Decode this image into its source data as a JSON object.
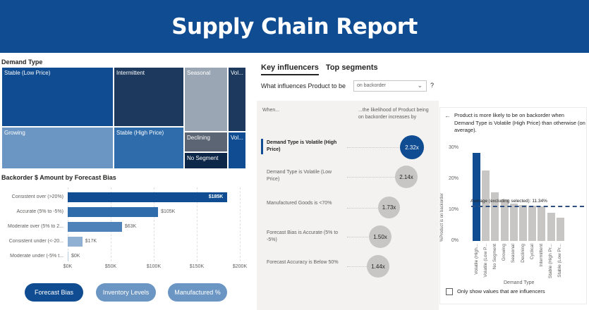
{
  "banner": {
    "title": "Supply Chain Report"
  },
  "treemap": {
    "title": "Demand Type",
    "tiles": [
      {
        "label": "Stable (Low Price)",
        "color": "#0f4c91"
      },
      {
        "label": "Growing",
        "color": "#6b95c2"
      },
      {
        "label": "Intermittent",
        "color": "#1d3a5e"
      },
      {
        "label": "Stable (High Price)",
        "color": "#2f6cab"
      },
      {
        "label": "Seasonal",
        "color": "#9ba6b4"
      },
      {
        "label": "Declining",
        "color": "#5c6573"
      },
      {
        "label": "No Segment",
        "color": "#0d2748"
      },
      {
        "label": "Vol...",
        "color": "#1d3a5e"
      },
      {
        "label": "Vol...",
        "color": "#0f4c91"
      }
    ]
  },
  "bar_chart": {
    "title": "Backorder $ Amount by Forecast Bias"
  },
  "chart_data": {
    "type": "bar",
    "orientation": "horizontal",
    "title": "Backorder $ Amount by Forecast Bias",
    "categories": [
      "Consistent over (>20%)",
      "Accurate (5% to -5%)",
      "Moderate over (5% to 2...",
      "Consistent under (<-20...",
      "Moderate under (-5% t..."
    ],
    "values": [
      185,
      105,
      63,
      17,
      0
    ],
    "value_labels": [
      "$185K",
      "$105K",
      "$63K",
      "$17K",
      "$0K"
    ],
    "x_ticks": [
      "$0K",
      "$50K",
      "$100K",
      "$150K",
      "$200K"
    ],
    "xlim": [
      0,
      200
    ],
    "bar_colors": [
      "#0f4c91",
      "#2f6cab",
      "#4f82b8",
      "#8fb0d3",
      "#b8cde4"
    ]
  },
  "buttons": [
    {
      "label": "Forecast Bias",
      "active": true
    },
    {
      "label": "Inventory Levels",
      "active": false
    },
    {
      "label": "Manufactured %",
      "active": false
    }
  ],
  "key_influencers": {
    "tabs": [
      "Key influencers",
      "Top segments"
    ],
    "question": "What influences Product to be",
    "dropdown_value": "on backorder",
    "help": "?",
    "when_header": "When...",
    "then_header": "...the likelihood of Product being on backorder increases by",
    "rows": [
      {
        "label": "Demand Type is Volatile (High Price)",
        "value": "2.32x",
        "selected": true
      },
      {
        "label": "Demand Type is Volatile (Low Price)",
        "value": "2.14x",
        "selected": false
      },
      {
        "label": "Manufactured Goods is <70%",
        "value": "1.73x",
        "selected": false
      },
      {
        "label": "Forecast Bias is Accurate (5% to -5%)",
        "value": "1.50x",
        "selected": false
      },
      {
        "label": "Forecast Accuracy is Below 50%",
        "value": "1.44x",
        "selected": false
      }
    ]
  },
  "detail_card": {
    "back": "←",
    "description": "Product is more likely to be on backorder when Demand Type is Volatile (High Price) than otherwise (on average).",
    "y_axis_label": "%Product is on backorder",
    "y_ticks": [
      "30%",
      "20%",
      "10%",
      "0%"
    ],
    "x_axis_title": "Demand Type",
    "average_label": "Average (excluding selected): 11.34%",
    "average_value": 11.34,
    "ymax": 30,
    "categories": [
      "Volatile (High...",
      "Volatile (Low P...",
      "No Segment",
      "Growing",
      "Seasonal",
      "Declining",
      "Cyclical",
      "Intermittent",
      "Stable (High Pr...",
      "Stable (Low Pr..."
    ],
    "values": [
      28.5,
      22.8,
      15.7,
      13.4,
      12.1,
      11.5,
      11.3,
      11.1,
      9.0,
      7.6
    ],
    "bar_colors": {
      "selected": "#0f4c91",
      "other": "#c8c6c4"
    },
    "checkbox_label": "Only show values that are influencers"
  }
}
